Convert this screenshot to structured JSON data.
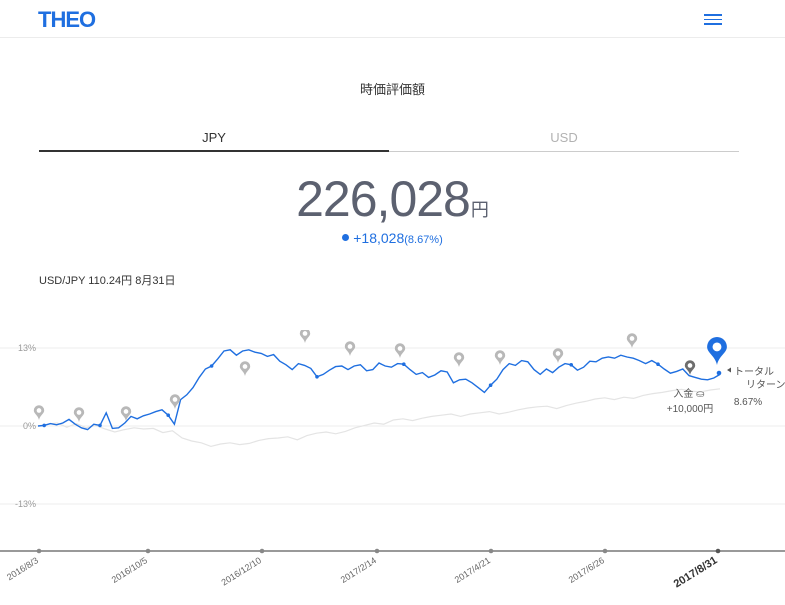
{
  "header": {
    "logo": "THEO",
    "menu_icon": "hamburger-menu-icon"
  },
  "title": "時価評価額",
  "tabs": [
    {
      "label": "JPY",
      "active": true
    },
    {
      "label": "USD",
      "active": false
    }
  ],
  "summary": {
    "value": "226,028",
    "unit": "円",
    "change": "+18,028",
    "change_pct": "(8.67%)"
  },
  "fx_rate": "USD/JPY 110.24円 8月31日",
  "colors": {
    "accent": "#1f6fe0",
    "grey": "#b3b3b3",
    "text": "#5c6170"
  },
  "chart_data": {
    "type": "line",
    "x_labels": [
      "2016/8/3",
      "2016/10/5",
      "2016/12/10",
      "2017/2/14",
      "2017/4/21",
      "2017/6/26",
      "2017/8/31"
    ],
    "y_ticks": [
      "13%",
      "0%",
      "-13%"
    ],
    "ylim": [
      -13,
      13
    ],
    "series": [
      {
        "values": [
          0,
          0.1,
          0.4,
          0.2,
          0.5,
          1.1,
          0.3,
          -0.3,
          -0.6,
          0.3,
          0.1,
          2.2,
          -0.4,
          -0.3,
          0.5,
          1.6,
          1.2,
          1.7,
          2.0,
          2.4,
          2.7,
          1.8,
          0.3,
          4.4,
          5.2,
          6.4,
          8.1,
          9.5,
          10.0,
          11.2,
          12.5,
          12.7,
          11.8,
          12.5,
          12.7,
          12.3,
          12.1,
          11.6,
          11.9,
          10.8,
          10.2,
          9.4,
          10.4,
          10.1,
          9.6,
          8.2,
          8.6,
          9.3,
          9.9,
          10.0,
          9.4,
          10.0,
          10.2,
          9.2,
          9.4,
          10.5,
          10.0,
          9.8,
          10.4,
          10.3,
          9.4,
          8.6,
          8.9,
          8.1,
          8.5,
          9.2,
          9.0,
          7.2,
          7.7,
          7.8,
          7.2,
          6.4,
          5.6,
          6.8,
          7.8,
          9.4,
          10.4,
          10.1,
          10.9,
          10.7,
          9.4,
          8.6,
          9.5,
          8.9,
          9.8,
          10.4,
          10.2,
          9.3,
          9.8,
          10.8,
          10.7,
          11.3,
          11.5,
          11.3,
          11.8,
          11.5,
          11.3,
          10.9,
          10.4,
          10.9,
          10.3,
          9.5,
          8.8,
          9.1,
          9.5,
          8.4,
          8.1,
          7.8,
          7.7,
          8.0,
          8.6
        ]
      },
      {
        "values": [
          0,
          0.3,
          0.5,
          -0.2,
          0.4,
          -0.3,
          0.1,
          -0.5,
          -1.0,
          -0.6,
          -0.3,
          -0.5,
          -0.4,
          -1.1,
          -0.8,
          -2.0,
          -2.5,
          -2.8,
          -3.4,
          -3.0,
          -2.8,
          -3.1,
          -2.9,
          -2.4,
          -2.1,
          -2.0,
          -1.8,
          -2.3,
          -1.6,
          -1.2,
          -1.0,
          -1.3,
          -0.9,
          -0.3,
          0.1,
          0.5,
          0.3,
          1.0,
          1.2,
          0.9,
          1.3,
          1.6,
          1.8,
          2.0,
          1.6,
          2.0,
          2.2,
          2.4,
          2.0,
          2.3,
          2.7,
          3.0,
          3.2,
          3.3,
          2.9,
          3.4,
          3.8,
          4.1,
          4.5,
          4.7,
          4.4,
          4.8,
          4.6,
          5.1,
          5.4,
          5.6,
          5.9,
          6.1,
          5.8,
          5.7,
          6.0,
          6.2
        ]
      }
    ],
    "annotations": [
      {
        "label": "入金",
        "value": "+10,000円"
      },
      {
        "label": "トータル リターン",
        "value": "8.67%"
      }
    ]
  }
}
